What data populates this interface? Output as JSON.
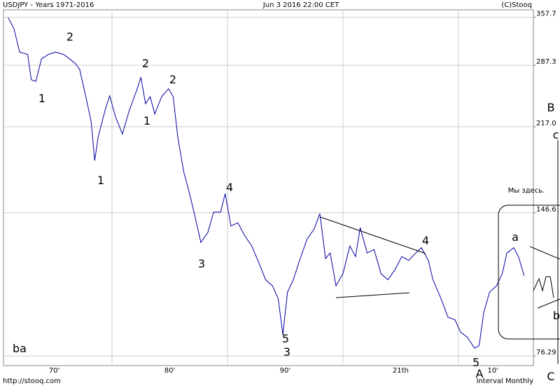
{
  "chart_data": {
    "type": "line",
    "title": "USDJPY - Years 1971-2016",
    "subtitle": "Jun 3 2016 22:00 CET",
    "source": "(C)Stooq",
    "footer_left": "http://stooq.com",
    "footer_right": "Interval Monthly",
    "log_scale": true,
    "grid": true,
    "color": "#0000a0",
    "xlim": [
      1970.6,
      2016.5
    ],
    "ylim": [
      73,
      370
    ],
    "yticks": [
      357.7,
      287.3,
      {
        "value": 217.0,
        "label": "217.0"
      },
      146.6,
      76.29
    ],
    "xticks": [
      {
        "value": 1975,
        "label": "70'"
      },
      {
        "value": 1985,
        "label": "80'"
      },
      {
        "value": 1995,
        "label": "90'"
      },
      {
        "value": 2005,
        "label": "21th"
      },
      {
        "value": 2013,
        "label": "10'"
      }
    ],
    "xgrid": [
      1980,
      1990,
      2000,
      2010
    ],
    "x": [
      1971.0,
      1971.5,
      1972.0,
      1972.7,
      1973.0,
      1973.4,
      1973.9,
      1974.5,
      1975.1,
      1975.8,
      1976.3,
      1976.8,
      1977.2,
      1977.8,
      1978.2,
      1978.5,
      1978.8,
      1979.4,
      1979.8,
      1980.3,
      1980.9,
      1981.5,
      1982.1,
      1982.5,
      1982.9,
      1983.3,
      1983.7,
      1984.3,
      1984.9,
      1985.3,
      1985.7,
      1986.2,
      1986.6,
      1987.1,
      1987.7,
      1988.3,
      1988.8,
      1989.4,
      1989.8,
      1990.3,
      1990.9,
      1991.5,
      1992.1,
      1992.7,
      1993.3,
      1993.9,
      1994.4,
      1994.8,
      1995.2,
      1995.7,
      1996.3,
      1996.9,
      1997.5,
      1998.0,
      1998.5,
      1998.9,
      1999.4,
      2000.0,
      2000.6,
      2001.1,
      2001.5,
      2002.1,
      2002.7,
      2003.3,
      2003.9,
      2004.5,
      2005.1,
      2005.7,
      2006.3,
      2006.8,
      2007.4,
      2007.8,
      2008.5,
      2009.1,
      2009.7,
      2010.2,
      2010.8,
      2011.4,
      2011.8,
      2012.2,
      2012.7,
      2013.3,
      2013.8,
      2014.2,
      2014.8,
      2015.2,
      2015.7
    ],
    "values": [
      357,
      340,
      305,
      302,
      269,
      267,
      296,
      302,
      305,
      302,
      296,
      290,
      282,
      245,
      222,
      186,
      207,
      234,
      250,
      227,
      210,
      234,
      255,
      272,
      241,
      249,
      230,
      249,
      258,
      249,
      207,
      177,
      164,
      147,
      128,
      134,
      147,
      147,
      160,
      138,
      140,
      132,
      126,
      117,
      108,
      105,
      99,
      84,
      102,
      108,
      119,
      130,
      136,
      146,
      119,
      122,
      105,
      111,
      126,
      120,
      137,
      122,
      124,
      111,
      108,
      113,
      120,
      118,
      122,
      125,
      118,
      108,
      99,
      91,
      90,
      85,
      83,
      79,
      80,
      93,
      102,
      105,
      111,
      122,
      125,
      120,
      110
    ],
    "annotations": [
      "2",
      "1",
      "2",
      "1",
      "2",
      "1",
      "4",
      "3",
      "5",
      "3",
      "4",
      "5",
      "A",
      "a",
      "b",
      "c",
      "B",
      "C",
      "Мы здесь.",
      "ba"
    ]
  }
}
